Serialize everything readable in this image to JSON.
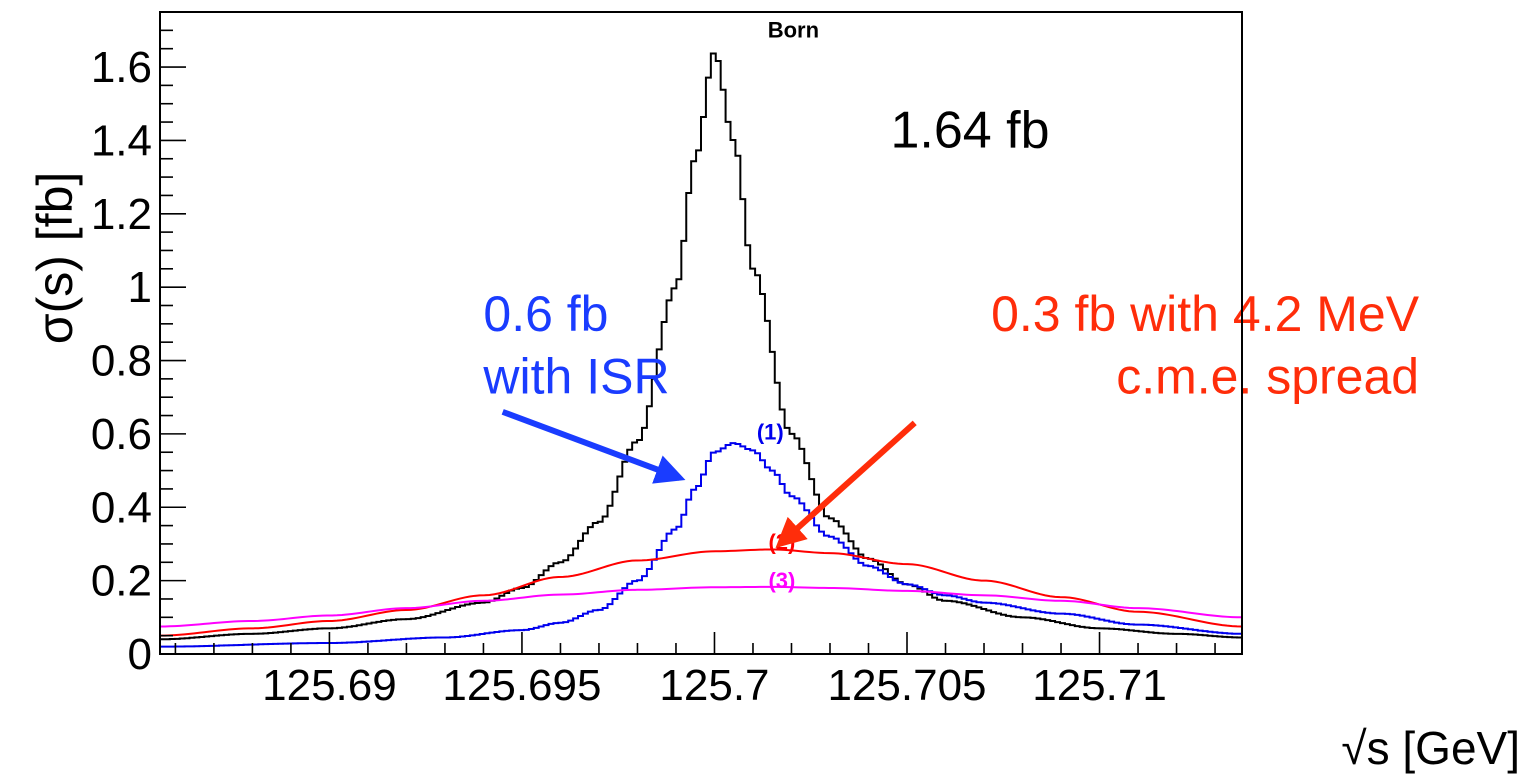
{
  "chart_data": {
    "type": "line",
    "xlabel": "√s   [GeV]",
    "ylabel": "σ(s)  [fb]",
    "xlim": [
      125.6856,
      125.7137
    ],
    "ylim": [
      0,
      1.75
    ],
    "x_ticks": [
      125.69,
      125.695,
      125.7,
      125.705,
      125.71
    ],
    "x_tick_labels": [
      "125.69",
      "125.695",
      "125.7",
      "125.705",
      "125.71"
    ],
    "y_ticks": [
      0,
      0.2,
      0.4,
      0.6,
      0.8,
      1,
      1.2,
      1.4,
      1.6
    ],
    "y_tick_labels": [
      "0",
      "0.2",
      "0.4",
      "0.6",
      "0.8",
      "1",
      "1.2",
      "1.4",
      "1.6"
    ],
    "grid": false,
    "series": [
      {
        "name": "Born",
        "color": "#000000",
        "style": "step",
        "x": [
          125.6856,
          125.688,
          125.69,
          125.692,
          125.694,
          125.695,
          125.696,
          125.697,
          125.698,
          125.699,
          125.6995,
          125.7,
          125.7005,
          125.701,
          125.702,
          125.703,
          125.704,
          125.705,
          125.706,
          125.708,
          125.71,
          125.712,
          125.7137
        ],
        "values": [
          0.04,
          0.055,
          0.07,
          0.095,
          0.14,
          0.18,
          0.25,
          0.36,
          0.58,
          1.0,
          1.35,
          1.64,
          1.4,
          1.05,
          0.6,
          0.37,
          0.26,
          0.19,
          0.145,
          0.1,
          0.07,
          0.055,
          0.045
        ]
      },
      {
        "name": "(1)",
        "color": "#0000ee",
        "style": "step",
        "x": [
          125.6856,
          125.69,
          125.693,
          125.695,
          125.696,
          125.697,
          125.698,
          125.699,
          125.6995,
          125.7,
          125.7005,
          125.701,
          125.7015,
          125.702,
          125.703,
          125.704,
          125.705,
          125.706,
          125.707,
          125.709,
          125.711,
          125.7137
        ],
        "values": [
          0.02,
          0.03,
          0.045,
          0.065,
          0.085,
          0.12,
          0.2,
          0.34,
          0.45,
          0.55,
          0.575,
          0.555,
          0.5,
          0.43,
          0.32,
          0.24,
          0.19,
          0.16,
          0.14,
          0.11,
          0.08,
          0.055
        ]
      },
      {
        "name": "(2)",
        "color": "#ff0000",
        "style": "line",
        "x": [
          125.6856,
          125.688,
          125.69,
          125.692,
          125.694,
          125.696,
          125.698,
          125.7,
          125.7015,
          125.703,
          125.705,
          125.707,
          125.709,
          125.711,
          125.7137
        ],
        "values": [
          0.05,
          0.07,
          0.09,
          0.12,
          0.16,
          0.21,
          0.255,
          0.28,
          0.285,
          0.275,
          0.245,
          0.2,
          0.155,
          0.115,
          0.075
        ]
      },
      {
        "name": "(3)",
        "color": "#ff00ff",
        "style": "line",
        "x": [
          125.6856,
          125.688,
          125.69,
          125.692,
          125.694,
          125.696,
          125.698,
          125.7,
          125.7015,
          125.703,
          125.705,
          125.707,
          125.709,
          125.711,
          125.7137
        ],
        "values": [
          0.075,
          0.09,
          0.105,
          0.125,
          0.145,
          0.162,
          0.175,
          0.182,
          0.183,
          0.18,
          0.172,
          0.16,
          0.145,
          0.125,
          0.1
        ]
      }
    ],
    "annotations": [
      {
        "id": "born",
        "text": "Born",
        "color": "#000000",
        "x": 125.70205,
        "y": 1.68
      },
      {
        "id": "sigma-born",
        "text": "1.64 fb",
        "color": "#000000",
        "x": 125.7087,
        "y": 1.38
      },
      {
        "id": "label-1",
        "text": "(1)",
        "color": "#0000ee",
        "x": 125.70145,
        "y": 0.585
      },
      {
        "id": "label-2",
        "text": "(2)",
        "color": "#ff0000",
        "x": 125.70175,
        "y": 0.285
      },
      {
        "id": "label-3",
        "text": "(3)",
        "color": "#ff00ff",
        "x": 125.70175,
        "y": 0.18
      },
      {
        "id": "isr-line1",
        "text": "0.6 fb",
        "color": "#1a3cff",
        "x": 125.694,
        "y": 0.88
      },
      {
        "id": "isr-line2",
        "text": "with ISR",
        "color": "#1a3cff",
        "x": 125.694,
        "y": 0.71
      },
      {
        "id": "spread-line1",
        "text": "0.3 fb with 4.2 MeV",
        "color": "#ff2d0a",
        "x": 125.7183,
        "y": 0.88
      },
      {
        "id": "spread-line2",
        "text": "c.m.e. spread",
        "color": "#ff2d0a",
        "x": 125.7183,
        "y": 0.71
      }
    ],
    "arrows": [
      {
        "id": "isr-arrow",
        "color": "#1a3cff",
        "from": [
          125.6945,
          0.66
        ],
        "to": [
          125.6991,
          0.48
        ]
      },
      {
        "id": "spread-arrow",
        "color": "#ff2d0a",
        "from": [
          125.7052,
          0.63
        ],
        "to": [
          125.7017,
          0.3
        ]
      }
    ]
  }
}
